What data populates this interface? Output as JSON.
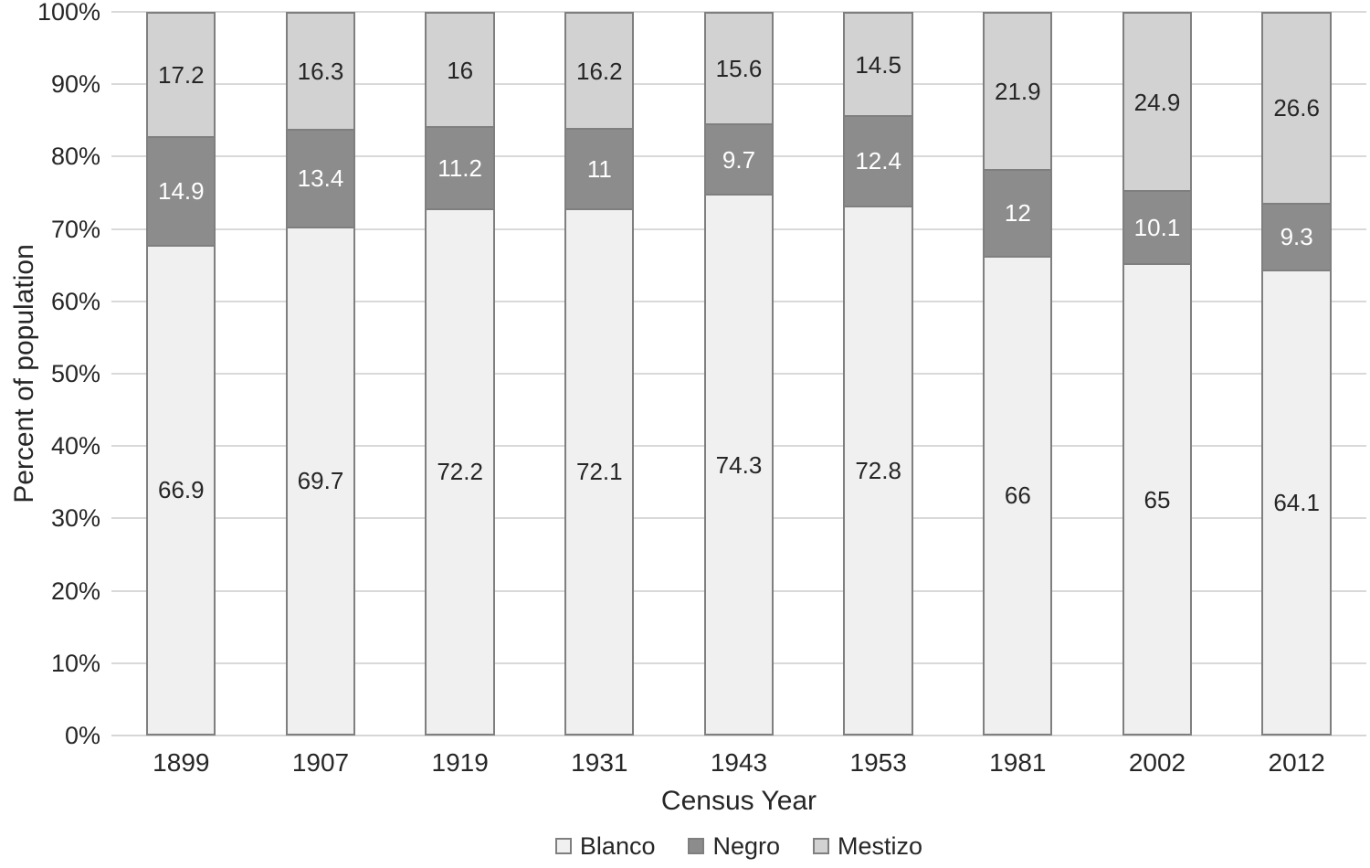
{
  "chart_data": {
    "type": "bar",
    "stacked": true,
    "percent_stacked": true,
    "title": "",
    "xlabel": "Census Year",
    "ylabel": "Percent of population",
    "categories": [
      "1899",
      "1907",
      "1919",
      "1931",
      "1943",
      "1953",
      "1981",
      "2002",
      "2012"
    ],
    "series": [
      {
        "name": "Blanco",
        "color": "#f0f0f0",
        "label_color": "#262626",
        "values": [
          66.9,
          69.7,
          72.2,
          72.1,
          74.3,
          72.8,
          66,
          65,
          64.1
        ]
      },
      {
        "name": "Negro",
        "color": "#8c8c8c",
        "label_color": "#ffffff",
        "values": [
          14.9,
          13.4,
          11.2,
          11,
          9.7,
          12.4,
          12,
          10.1,
          9.3
        ]
      },
      {
        "name": "Mestizo",
        "color": "#d2d2d2",
        "label_color": "#262626",
        "values": [
          17.2,
          16.3,
          16,
          16.2,
          15.6,
          14.5,
          21.9,
          24.9,
          26.6
        ]
      }
    ],
    "y_ticks": [
      "0%",
      "10%",
      "20%",
      "30%",
      "40%",
      "50%",
      "60%",
      "70%",
      "80%",
      "90%",
      "100%"
    ],
    "ylim": [
      0,
      100
    ],
    "grid": true,
    "legend_position": "bottom",
    "legend_entries": [
      "Blanco",
      "Negro",
      "Mestizo"
    ],
    "colors": {
      "bar_border": "#7f7f7f",
      "gridline": "#d9d9d9",
      "axis_line": "#d6d6d6",
      "text": "#262626"
    }
  }
}
